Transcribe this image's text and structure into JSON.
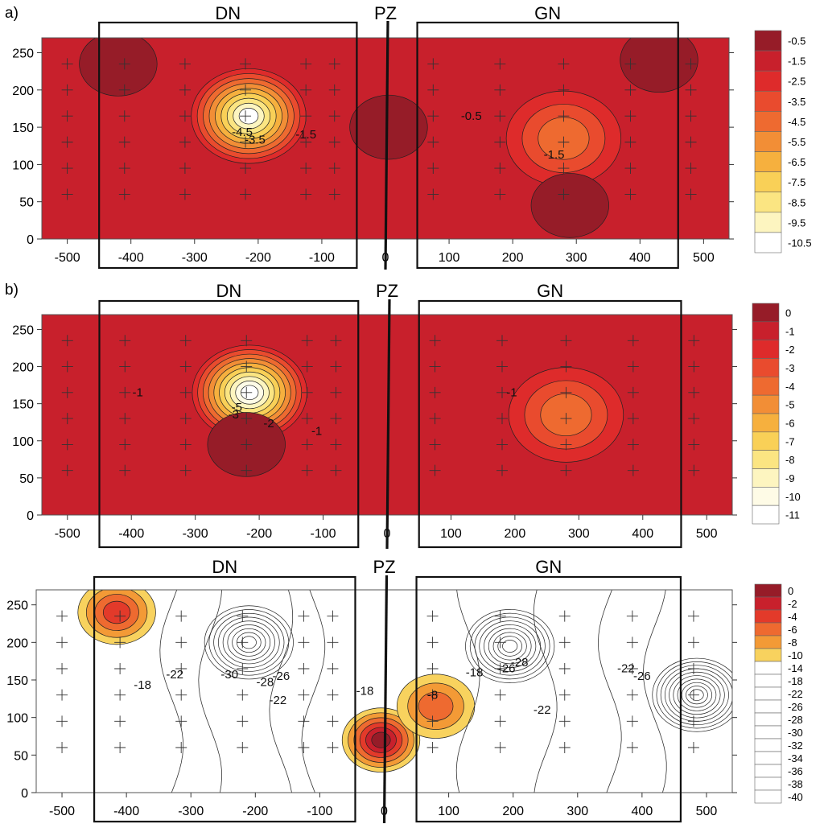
{
  "chart_data": [
    {
      "type": "heatmap",
      "panel_label": "a)",
      "xlim": [
        -540,
        540
      ],
      "ylim": [
        0,
        270
      ],
      "x_ticks": [
        -500,
        -400,
        -300,
        -200,
        -100,
        0,
        100,
        200,
        300,
        400,
        500
      ],
      "y_ticks": [
        0,
        50,
        100,
        150,
        200,
        250
      ],
      "region_boxes": [
        {
          "label": "DN",
          "x_range": [
            -450,
            -45
          ]
        },
        {
          "label": "GN",
          "x_range": [
            50,
            460
          ]
        }
      ],
      "center_line": {
        "label": "PZ",
        "x": 0
      },
      "grid_points": {
        "x": [
          -500,
          -410,
          -315,
          -220,
          -125,
          -80,
          75,
          180,
          280,
          385,
          480
        ],
        "y": [
          60,
          95,
          130,
          165,
          200,
          235
        ]
      },
      "legend": [
        "-0.5",
        "-1.5",
        "-2.5",
        "-3.5",
        "-4.5",
        "-5.5",
        "-6.5",
        "-7.5",
        "-8.5",
        "-9.5",
        "-10.5"
      ],
      "legend_colors": [
        "#961c28",
        "#c8202c",
        "#de2b2b",
        "#e94b2e",
        "#ee6a30",
        "#f28e36",
        "#f6b03e",
        "#f9d057",
        "#fbe582",
        "#fdf5c0",
        "#ffffff"
      ],
      "background_color": "#c8202c",
      "features": [
        {
          "kind": "low",
          "x": -215,
          "y": 165,
          "value": -10.5
        },
        {
          "kind": "low",
          "x": 280,
          "y": 135,
          "value": -4.5
        },
        {
          "kind": "high",
          "x": -420,
          "y": 235,
          "value": -0.5
        },
        {
          "kind": "high",
          "x": 5,
          "y": 150,
          "value": -0.5
        },
        {
          "kind": "high",
          "x": 290,
          "y": 45,
          "value": -0.5
        },
        {
          "kind": "high",
          "x": 430,
          "y": 240,
          "value": -0.5
        }
      ],
      "contour_labels": [
        {
          "text": "-4.5",
          "x": -225,
          "y": 138
        },
        {
          "text": "-3.5",
          "x": -205,
          "y": 128
        },
        {
          "text": "-1.5",
          "x": -125,
          "y": 135
        },
        {
          "text": "-0.5",
          "x": 135,
          "y": 160
        },
        {
          "text": "-1.5",
          "x": 265,
          "y": 108
        }
      ]
    },
    {
      "type": "heatmap",
      "panel_label": "b)",
      "xlim": [
        -540,
        540
      ],
      "ylim": [
        0,
        270
      ],
      "x_ticks": [
        -500,
        -400,
        -300,
        -200,
        -100,
        0,
        100,
        200,
        300,
        400,
        500
      ],
      "y_ticks": [
        0,
        50,
        100,
        150,
        200,
        250
      ],
      "region_boxes": [
        {
          "label": "DN",
          "x_range": [
            -450,
            -45
          ]
        },
        {
          "label": "GN",
          "x_range": [
            50,
            460
          ]
        }
      ],
      "center_line": {
        "label": "PZ",
        "x": 0
      },
      "grid_points": {
        "x": [
          -500,
          -410,
          -315,
          -220,
          -125,
          -80,
          75,
          180,
          280,
          385,
          480
        ],
        "y": [
          60,
          95,
          130,
          165,
          200,
          235
        ]
      },
      "legend": [
        "0",
        "-1",
        "-2",
        "-3",
        "-4",
        "-5",
        "-6",
        "-7",
        "-8",
        "-9",
        "-10",
        "-11"
      ],
      "legend_colors": [
        "#961c28",
        "#c8202c",
        "#de2b2b",
        "#e94b2e",
        "#ee6a30",
        "#f28e36",
        "#f6b03e",
        "#f9d057",
        "#fbe582",
        "#fdf5c0",
        "#fefbe6",
        "#ffffff"
      ],
      "background_color": "#c8202c",
      "features": [
        {
          "kind": "low",
          "x": -215,
          "y": 165,
          "value": -11
        },
        {
          "kind": "low",
          "x": 280,
          "y": 135,
          "value": -4
        },
        {
          "kind": "high",
          "x": -220,
          "y": 95,
          "value": 0
        }
      ],
      "contour_labels": [
        {
          "text": "-1",
          "x": -390,
          "y": 160
        },
        {
          "text": "-3",
          "x": -240,
          "y": 130
        },
        {
          "text": "-5",
          "x": -235,
          "y": 140
        },
        {
          "text": "-2",
          "x": -185,
          "y": 118
        },
        {
          "text": "-1",
          "x": -110,
          "y": 108
        },
        {
          "text": "-1",
          "x": 195,
          "y": 160
        }
      ]
    },
    {
      "type": "heatmap",
      "panel_label": "",
      "xlim": [
        -540,
        540
      ],
      "ylim": [
        0,
        270
      ],
      "x_ticks": [
        -500,
        -400,
        -300,
        -200,
        -100,
        0,
        100,
        200,
        300,
        400,
        500
      ],
      "y_ticks": [
        0,
        50,
        100,
        150,
        200,
        250
      ],
      "region_boxes": [
        {
          "label": "DN",
          "x_range": [
            -450,
            -45
          ]
        },
        {
          "label": "GN",
          "x_range": [
            50,
            460
          ]
        }
      ],
      "center_line": {
        "label": "PZ",
        "x": 0
      },
      "grid_points": {
        "x": [
          -500,
          -410,
          -315,
          -220,
          -125,
          -80,
          75,
          180,
          280,
          385,
          480
        ],
        "y": [
          60,
          95,
          130,
          165,
          200,
          235
        ]
      },
      "legend": [
        "0",
        "-2",
        "-4",
        "-6",
        "-8",
        "-10",
        "-14",
        "-18",
        "-22",
        "-26",
        "-28",
        "-30",
        "-32",
        "-34",
        "-36",
        "-38",
        "-40"
      ],
      "legend_colors": [
        "#961c28",
        "#c8202c",
        "#e33a2a",
        "#ee6a30",
        "#f39a36",
        "#f8d25e",
        "#ffffff",
        "#ffffff",
        "#ffffff",
        "#ffffff",
        "#ffffff",
        "#ffffff",
        "#ffffff",
        "#ffffff",
        "#ffffff",
        "#ffffff",
        "#ffffff"
      ],
      "background_color": "#ffffff",
      "features": [
        {
          "kind": "high",
          "x": -415,
          "y": 240,
          "value": -4
        },
        {
          "kind": "high",
          "x": -5,
          "y": 70,
          "value": 0
        },
        {
          "kind": "high",
          "x": 80,
          "y": 115,
          "value": -6
        },
        {
          "kind": "low",
          "x": -210,
          "y": 200,
          "value": -38
        },
        {
          "kind": "low",
          "x": 195,
          "y": 195,
          "value": -38
        },
        {
          "kind": "low",
          "x": 485,
          "y": 130,
          "value": -40
        }
      ],
      "contour_labels": [
        {
          "text": "-18",
          "x": -375,
          "y": 138
        },
        {
          "text": "-22",
          "x": -325,
          "y": 152
        },
        {
          "text": "-30",
          "x": -240,
          "y": 152
        },
        {
          "text": "-28",
          "x": -185,
          "y": 142
        },
        {
          "text": "-26",
          "x": -160,
          "y": 150
        },
        {
          "text": "-22",
          "x": -165,
          "y": 118
        },
        {
          "text": "-18",
          "x": -30,
          "y": 130
        },
        {
          "text": "-8",
          "x": 75,
          "y": 125
        },
        {
          "text": "-18",
          "x": 140,
          "y": 155
        },
        {
          "text": "-28",
          "x": 210,
          "y": 168
        },
        {
          "text": "-26",
          "x": 190,
          "y": 160
        },
        {
          "text": "-22",
          "x": 245,
          "y": 105
        },
        {
          "text": "-22",
          "x": 375,
          "y": 160
        },
        {
          "text": "-26",
          "x": 400,
          "y": 150
        }
      ]
    }
  ]
}
